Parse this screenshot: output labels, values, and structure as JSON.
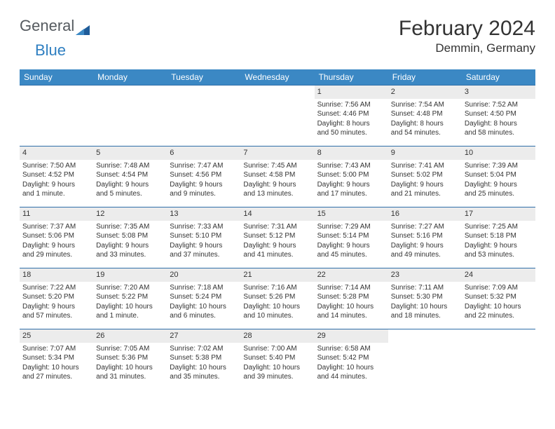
{
  "brand": {
    "general": "General",
    "blue": "Blue"
  },
  "title": "February 2024",
  "location": "Demmin, Germany",
  "dow": [
    "Sunday",
    "Monday",
    "Tuesday",
    "Wednesday",
    "Thursday",
    "Friday",
    "Saturday"
  ],
  "colors": {
    "header_bg": "#3b88c4",
    "header_text": "#ffffff",
    "daynum_bg": "#ececec",
    "row_border": "#2f6ea8",
    "text": "#333333",
    "logo_general": "#555a5f",
    "logo_blue": "#2f7fc1",
    "background": "#ffffff"
  },
  "weeks": [
    [
      {
        "n": "",
        "lines": []
      },
      {
        "n": "",
        "lines": []
      },
      {
        "n": "",
        "lines": []
      },
      {
        "n": "",
        "lines": []
      },
      {
        "n": "1",
        "lines": [
          "Sunrise: 7:56 AM",
          "Sunset: 4:46 PM",
          "Daylight: 8 hours",
          "and 50 minutes."
        ]
      },
      {
        "n": "2",
        "lines": [
          "Sunrise: 7:54 AM",
          "Sunset: 4:48 PM",
          "Daylight: 8 hours",
          "and 54 minutes."
        ]
      },
      {
        "n": "3",
        "lines": [
          "Sunrise: 7:52 AM",
          "Sunset: 4:50 PM",
          "Daylight: 8 hours",
          "and 58 minutes."
        ]
      }
    ],
    [
      {
        "n": "4",
        "lines": [
          "Sunrise: 7:50 AM",
          "Sunset: 4:52 PM",
          "Daylight: 9 hours",
          "and 1 minute."
        ]
      },
      {
        "n": "5",
        "lines": [
          "Sunrise: 7:48 AM",
          "Sunset: 4:54 PM",
          "Daylight: 9 hours",
          "and 5 minutes."
        ]
      },
      {
        "n": "6",
        "lines": [
          "Sunrise: 7:47 AM",
          "Sunset: 4:56 PM",
          "Daylight: 9 hours",
          "and 9 minutes."
        ]
      },
      {
        "n": "7",
        "lines": [
          "Sunrise: 7:45 AM",
          "Sunset: 4:58 PM",
          "Daylight: 9 hours",
          "and 13 minutes."
        ]
      },
      {
        "n": "8",
        "lines": [
          "Sunrise: 7:43 AM",
          "Sunset: 5:00 PM",
          "Daylight: 9 hours",
          "and 17 minutes."
        ]
      },
      {
        "n": "9",
        "lines": [
          "Sunrise: 7:41 AM",
          "Sunset: 5:02 PM",
          "Daylight: 9 hours",
          "and 21 minutes."
        ]
      },
      {
        "n": "10",
        "lines": [
          "Sunrise: 7:39 AM",
          "Sunset: 5:04 PM",
          "Daylight: 9 hours",
          "and 25 minutes."
        ]
      }
    ],
    [
      {
        "n": "11",
        "lines": [
          "Sunrise: 7:37 AM",
          "Sunset: 5:06 PM",
          "Daylight: 9 hours",
          "and 29 minutes."
        ]
      },
      {
        "n": "12",
        "lines": [
          "Sunrise: 7:35 AM",
          "Sunset: 5:08 PM",
          "Daylight: 9 hours",
          "and 33 minutes."
        ]
      },
      {
        "n": "13",
        "lines": [
          "Sunrise: 7:33 AM",
          "Sunset: 5:10 PM",
          "Daylight: 9 hours",
          "and 37 minutes."
        ]
      },
      {
        "n": "14",
        "lines": [
          "Sunrise: 7:31 AM",
          "Sunset: 5:12 PM",
          "Daylight: 9 hours",
          "and 41 minutes."
        ]
      },
      {
        "n": "15",
        "lines": [
          "Sunrise: 7:29 AM",
          "Sunset: 5:14 PM",
          "Daylight: 9 hours",
          "and 45 minutes."
        ]
      },
      {
        "n": "16",
        "lines": [
          "Sunrise: 7:27 AM",
          "Sunset: 5:16 PM",
          "Daylight: 9 hours",
          "and 49 minutes."
        ]
      },
      {
        "n": "17",
        "lines": [
          "Sunrise: 7:25 AM",
          "Sunset: 5:18 PM",
          "Daylight: 9 hours",
          "and 53 minutes."
        ]
      }
    ],
    [
      {
        "n": "18",
        "lines": [
          "Sunrise: 7:22 AM",
          "Sunset: 5:20 PM",
          "Daylight: 9 hours",
          "and 57 minutes."
        ]
      },
      {
        "n": "19",
        "lines": [
          "Sunrise: 7:20 AM",
          "Sunset: 5:22 PM",
          "Daylight: 10 hours",
          "and 1 minute."
        ]
      },
      {
        "n": "20",
        "lines": [
          "Sunrise: 7:18 AM",
          "Sunset: 5:24 PM",
          "Daylight: 10 hours",
          "and 6 minutes."
        ]
      },
      {
        "n": "21",
        "lines": [
          "Sunrise: 7:16 AM",
          "Sunset: 5:26 PM",
          "Daylight: 10 hours",
          "and 10 minutes."
        ]
      },
      {
        "n": "22",
        "lines": [
          "Sunrise: 7:14 AM",
          "Sunset: 5:28 PM",
          "Daylight: 10 hours",
          "and 14 minutes."
        ]
      },
      {
        "n": "23",
        "lines": [
          "Sunrise: 7:11 AM",
          "Sunset: 5:30 PM",
          "Daylight: 10 hours",
          "and 18 minutes."
        ]
      },
      {
        "n": "24",
        "lines": [
          "Sunrise: 7:09 AM",
          "Sunset: 5:32 PM",
          "Daylight: 10 hours",
          "and 22 minutes."
        ]
      }
    ],
    [
      {
        "n": "25",
        "lines": [
          "Sunrise: 7:07 AM",
          "Sunset: 5:34 PM",
          "Daylight: 10 hours",
          "and 27 minutes."
        ]
      },
      {
        "n": "26",
        "lines": [
          "Sunrise: 7:05 AM",
          "Sunset: 5:36 PM",
          "Daylight: 10 hours",
          "and 31 minutes."
        ]
      },
      {
        "n": "27",
        "lines": [
          "Sunrise: 7:02 AM",
          "Sunset: 5:38 PM",
          "Daylight: 10 hours",
          "and 35 minutes."
        ]
      },
      {
        "n": "28",
        "lines": [
          "Sunrise: 7:00 AM",
          "Sunset: 5:40 PM",
          "Daylight: 10 hours",
          "and 39 minutes."
        ]
      },
      {
        "n": "29",
        "lines": [
          "Sunrise: 6:58 AM",
          "Sunset: 5:42 PM",
          "Daylight: 10 hours",
          "and 44 minutes."
        ]
      },
      {
        "n": "",
        "lines": []
      },
      {
        "n": "",
        "lines": []
      }
    ]
  ]
}
